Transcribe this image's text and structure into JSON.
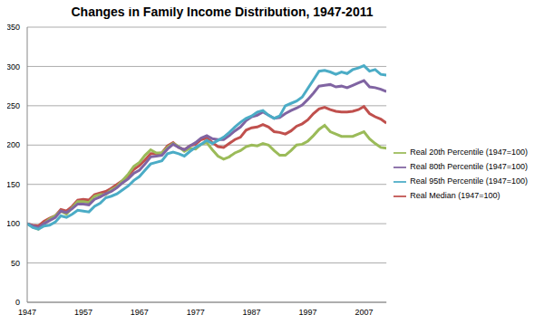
{
  "chart_data": {
    "type": "line",
    "title": "Changes in Family Income Distribution, 1947-2011",
    "x": [
      1947,
      1948,
      1949,
      1950,
      1951,
      1952,
      1953,
      1954,
      1955,
      1956,
      1957,
      1958,
      1959,
      1960,
      1961,
      1962,
      1963,
      1964,
      1965,
      1966,
      1967,
      1968,
      1969,
      1970,
      1971,
      1972,
      1973,
      1974,
      1975,
      1976,
      1977,
      1978,
      1979,
      1980,
      1981,
      1982,
      1983,
      1984,
      1985,
      1986,
      1987,
      1988,
      1989,
      1990,
      1991,
      1992,
      1993,
      1994,
      1995,
      1996,
      1997,
      1998,
      1999,
      2000,
      2001,
      2002,
      2003,
      2004,
      2005,
      2006,
      2007,
      2008,
      2009,
      2010,
      2011
    ],
    "xlim": [
      1947,
      2011
    ],
    "xticks": [
      1947,
      1957,
      1967,
      1977,
      1987,
      1997,
      2007
    ],
    "ylim": [
      0,
      350
    ],
    "yticks": [
      0,
      50,
      100,
      150,
      200,
      250,
      300,
      350
    ],
    "grid": true,
    "legend": "right",
    "series": [
      {
        "name": "Real Median (1947=100)",
        "color": "#c0504d",
        "values": [
          100,
          98,
          97,
          103,
          107,
          110,
          118,
          116,
          122,
          130,
          131,
          130,
          137,
          139,
          141,
          145,
          150,
          155,
          161,
          169,
          174,
          181,
          189,
          189,
          190,
          199,
          203,
          197,
          194,
          199,
          201,
          207,
          209,
          203,
          198,
          197,
          202,
          207,
          210,
          219,
          222,
          223,
          226,
          223,
          217,
          216,
          214,
          218,
          224,
          227,
          232,
          240,
          246,
          248,
          245,
          243,
          242,
          242,
          243,
          245,
          249,
          240,
          236,
          233,
          228
        ]
      },
      {
        "name": "Real 20th Percentile (1947=100)",
        "color": "#9bbb59",
        "values": [
          100,
          96,
          93,
          100,
          106,
          110,
          116,
          112,
          120,
          128,
          128,
          127,
          135,
          137,
          137,
          143,
          147,
          155,
          163,
          173,
          178,
          187,
          194,
          190,
          190,
          197,
          202,
          198,
          192,
          196,
          195,
          201,
          203,
          194,
          186,
          182,
          185,
          190,
          193,
          198,
          200,
          199,
          202,
          200,
          193,
          187,
          187,
          193,
          200,
          201,
          205,
          212,
          220,
          225,
          217,
          214,
          211,
          211,
          211,
          214,
          217,
          208,
          202,
          197,
          196
        ]
      },
      {
        "name": "Real 80th Percentile (1947=100)",
        "color": "#8064a2",
        "values": [
          100,
          97,
          95,
          100,
          104,
          108,
          116,
          114,
          119,
          125,
          125,
          124,
          131,
          134,
          138,
          141,
          146,
          152,
          157,
          164,
          168,
          176,
          185,
          186,
          187,
          195,
          201,
          197,
          194,
          199,
          203,
          209,
          212,
          208,
          207,
          207,
          212,
          218,
          223,
          231,
          236,
          238,
          242,
          238,
          234,
          235,
          240,
          244,
          247,
          251,
          258,
          266,
          275,
          276,
          277,
          274,
          275,
          273,
          276,
          279,
          282,
          274,
          273,
          271,
          268
        ]
      },
      {
        "name": "Real 95th Percentile (1947=100)",
        "color": "#4bacc6",
        "values": [
          100,
          95,
          93,
          97,
          98,
          102,
          110,
          108,
          112,
          117,
          116,
          115,
          122,
          126,
          133,
          135,
          138,
          143,
          148,
          155,
          160,
          168,
          176,
          178,
          180,
          189,
          191,
          189,
          186,
          192,
          197,
          201,
          206,
          202,
          206,
          210,
          216,
          223,
          229,
          234,
          237,
          242,
          244,
          238,
          234,
          237,
          250,
          253,
          256,
          261,
          272,
          283,
          294,
          295,
          293,
          290,
          293,
          291,
          296,
          298,
          301,
          294,
          296,
          290,
          289
        ]
      }
    ]
  }
}
